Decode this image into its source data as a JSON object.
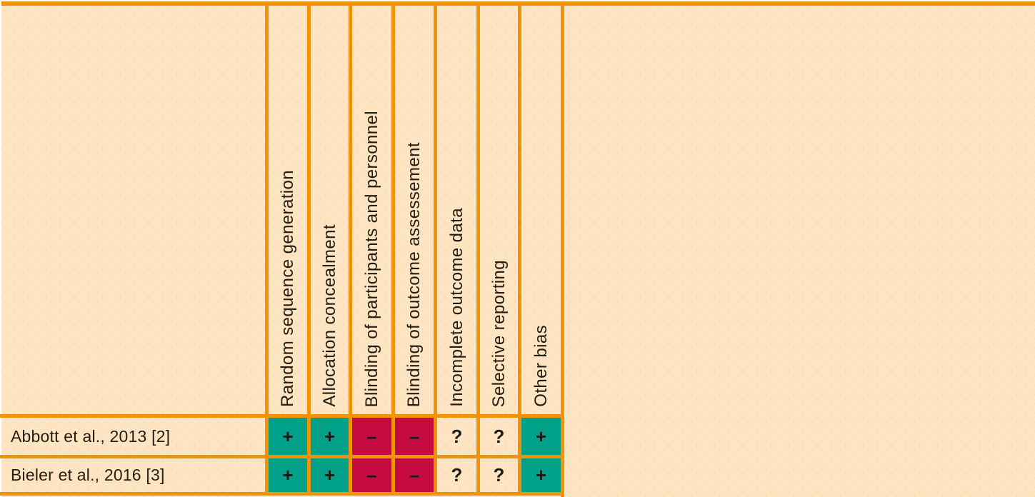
{
  "colors": {
    "background_beige": "#fde4c3",
    "grid_orange": "#f19306",
    "low_risk_green": "#00a089",
    "high_risk_red": "#c60b43",
    "unclear_beige": "transparent",
    "text": "#231d12"
  },
  "chart_data": {
    "type": "heatmap",
    "subtype": "risk-of-bias-summary-table",
    "columns": [
      "Random sequence generation",
      "Allocation concealment",
      "Blinding of participants and personnel",
      "Blinding of outcome assessement",
      "Incomplete outcome data",
      "Selective reporting",
      "Other bias"
    ],
    "rows": [
      "Abbott et al., 2013 [2]",
      "Bieler et al., 2016 [3]"
    ],
    "values": [
      [
        "+",
        "+",
        "–",
        "–",
        "?",
        "?",
        "+"
      ],
      [
        "+",
        "+",
        "–",
        "–",
        "?",
        "?",
        "+"
      ]
    ],
    "cell_colors": [
      [
        "#00a089",
        "#00a089",
        "#c60b43",
        "#c60b43",
        "transparent",
        "transparent",
        "#00a089"
      ],
      [
        "#00a089",
        "#00a089",
        "#c60b43",
        "#c60b43",
        "transparent",
        "transparent",
        "#00a089"
      ]
    ],
    "symbol_color_map": {
      "+": "#00a089",
      "–": "#c60b43",
      "?": "transparent"
    },
    "grid": true,
    "legend_position": "none"
  }
}
